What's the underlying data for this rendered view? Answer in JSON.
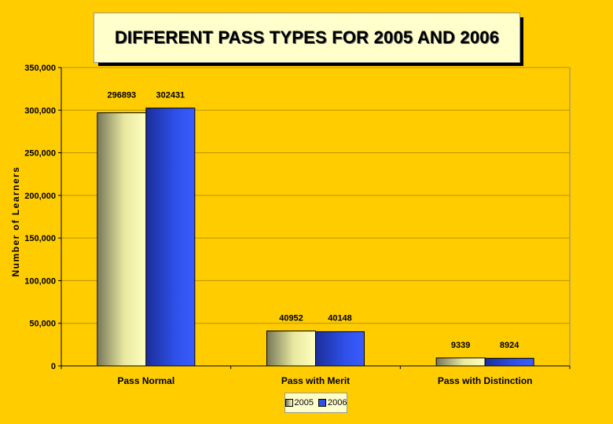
{
  "chart_data": {
    "type": "bar",
    "title": "DIFFERENT PASS TYPES FOR 2005 AND 2006",
    "ylabel": "Number of Learners",
    "xlabel": "",
    "categories": [
      "Pass Normal",
      "Pass with Merit",
      "Pass with Distinction"
    ],
    "series": [
      {
        "name": "2005",
        "values": [
          296893,
          40952,
          9339
        ],
        "color": "#FFFF99"
      },
      {
        "name": "2006",
        "values": [
          302431,
          40148,
          8924
        ],
        "color": "#3355EE"
      }
    ],
    "ylim": [
      0,
      350000
    ],
    "yticks": [
      0,
      50000,
      100000,
      150000,
      200000,
      250000,
      300000,
      350000
    ],
    "ytick_labels": [
      "0",
      "50,000",
      "100,000",
      "150,000",
      "200,000",
      "250,000",
      "300,000",
      "350,000"
    ],
    "data_labels": [
      [
        "296893",
        "40952",
        "9339"
      ],
      [
        "302431",
        "40148",
        "8924"
      ]
    ],
    "grid": true,
    "legend": "bottom",
    "plot_background": "#FFCC00"
  }
}
